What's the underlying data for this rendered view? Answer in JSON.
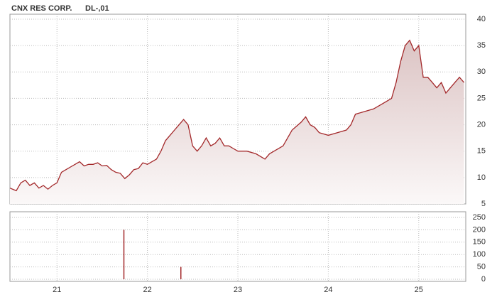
{
  "chart_data": [
    {
      "type": "area",
      "title": "CNX RES CORP.",
      "subtitle": "DL-,01",
      "color": "#a3282a",
      "grid": true,
      "xlim": [
        20.48,
        25.52
      ],
      "xticks": [
        21,
        22,
        23,
        24,
        25
      ],
      "ylim": [
        5,
        40
      ],
      "yticks": [
        5,
        10,
        15,
        20,
        25,
        30,
        35,
        40
      ],
      "x": [
        20.48,
        20.55,
        20.6,
        20.65,
        20.7,
        20.75,
        20.8,
        20.85,
        20.9,
        20.95,
        21.0,
        21.05,
        21.1,
        21.15,
        21.2,
        21.25,
        21.3,
        21.35,
        21.4,
        21.45,
        21.5,
        21.55,
        21.6,
        21.65,
        21.7,
        21.75,
        21.8,
        21.85,
        21.9,
        21.95,
        22.0,
        22.05,
        22.1,
        22.15,
        22.2,
        22.25,
        22.3,
        22.35,
        22.4,
        22.45,
        22.5,
        22.55,
        22.6,
        22.65,
        22.7,
        22.75,
        22.8,
        22.85,
        22.9,
        22.95,
        23.0,
        23.1,
        23.2,
        23.3,
        23.35,
        23.4,
        23.5,
        23.55,
        23.6,
        23.7,
        23.75,
        23.8,
        23.85,
        23.9,
        24.0,
        24.1,
        24.2,
        24.25,
        24.3,
        24.4,
        24.5,
        24.6,
        24.7,
        24.75,
        24.8,
        24.85,
        24.9,
        24.95,
        25.0,
        25.05,
        25.1,
        25.15,
        25.2,
        25.25,
        25.3,
        25.35,
        25.4,
        25.45,
        25.5
      ],
      "values": [
        8,
        7.5,
        9,
        9.5,
        8.5,
        9,
        8,
        8.5,
        7.8,
        8.5,
        9,
        11,
        11.5,
        12,
        12.5,
        13,
        12.2,
        12.5,
        12.5,
        12.8,
        12.2,
        12.3,
        11.5,
        11,
        10.8,
        9.8,
        10.5,
        11.5,
        11.7,
        12.8,
        12.5,
        13,
        13.5,
        15,
        17,
        18,
        19,
        20,
        21,
        20,
        16,
        15,
        16,
        17.5,
        16,
        16.5,
        17.5,
        16,
        16,
        15.5,
        15,
        15,
        14.5,
        13.5,
        14.5,
        15,
        16,
        17.5,
        19,
        20.5,
        21.5,
        20,
        19.5,
        18.5,
        18,
        18.5,
        19,
        20,
        22,
        22.5,
        23,
        24,
        25,
        28,
        32,
        35,
        36,
        34,
        35,
        29,
        29,
        28,
        27,
        28,
        26,
        27,
        28,
        29,
        28
      ]
    },
    {
      "type": "bar",
      "color": "#a3282a",
      "grid": true,
      "xlim": [
        20.48,
        25.52
      ],
      "xticks": [
        21,
        22,
        23,
        24,
        25
      ],
      "ylim": [
        0,
        250
      ],
      "yticks": [
        0,
        50,
        100,
        150,
        200,
        250
      ],
      "x": [
        21.74,
        22.37
      ],
      "values": [
        200,
        50
      ]
    }
  ]
}
